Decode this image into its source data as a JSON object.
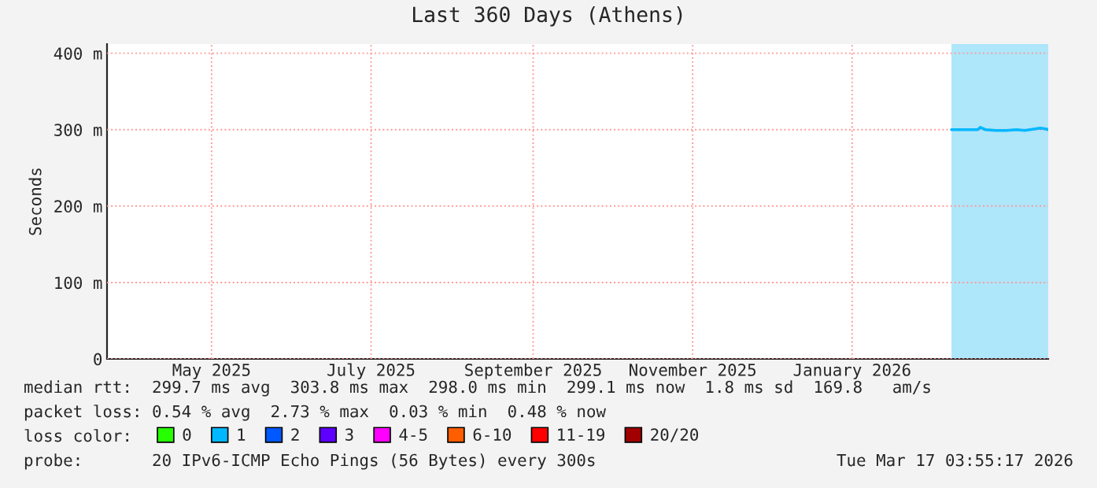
{
  "chart_data": {
    "type": "line",
    "title": "Last 360 Days (Athens)",
    "ylabel": "Seconds",
    "x": [
      "2026-02-08",
      "2026-02-12",
      "2026-02-16",
      "2026-02-18",
      "2026-02-19",
      "2026-02-21",
      "2026-02-25",
      "2026-03-01",
      "2026-03-05",
      "2026-03-08",
      "2026-03-10",
      "2026-03-12",
      "2026-03-14",
      "2026-03-16",
      "2026-03-17"
    ],
    "series": [
      {
        "name": "0",
        "color": "#26ff00",
        "values": [
          null,
          null,
          null,
          null,
          null,
          null,
          null,
          null,
          null,
          null,
          null,
          null,
          null,
          null,
          null
        ]
      },
      {
        "name": "1",
        "color": "#00b8ff",
        "values": [
          300,
          300,
          300,
          300,
          303,
          300,
          299,
          299,
          300,
          299,
          300,
          301,
          302,
          301,
          300
        ]
      },
      {
        "name": "2",
        "color": "#0059ff",
        "values": [
          null,
          null,
          null,
          null,
          null,
          null,
          null,
          null,
          null,
          null,
          null,
          null,
          null,
          null,
          null
        ]
      },
      {
        "name": "3",
        "color": "#5e00ff",
        "values": [
          null,
          null,
          null,
          null,
          null,
          null,
          null,
          null,
          null,
          null,
          null,
          null,
          null,
          null,
          null
        ]
      },
      {
        "name": "4-5",
        "color": "#ff00ff",
        "values": [
          null,
          null,
          null,
          null,
          null,
          null,
          null,
          null,
          null,
          null,
          null,
          null,
          null,
          null,
          null
        ]
      },
      {
        "name": "6-10",
        "color": "#ff5e00",
        "values": [
          null,
          null,
          null,
          null,
          null,
          null,
          null,
          null,
          null,
          null,
          null,
          null,
          null,
          null,
          null
        ]
      },
      {
        "name": "11-19",
        "color": "#ff0000",
        "values": [
          null,
          null,
          null,
          null,
          null,
          null,
          null,
          null,
          null,
          null,
          null,
          null,
          null,
          null,
          null
        ]
      },
      {
        "name": "20/20",
        "color": "#a10000",
        "values": [
          null,
          null,
          null,
          null,
          null,
          null,
          null,
          null,
          null,
          null,
          null,
          null,
          null,
          null,
          null
        ]
      }
    ],
    "legend_title": "loss color:",
    "legend": "bottom",
    "xlim": [
      "2025-03-22",
      "2026-03-17"
    ],
    "xticks": [
      {
        "value": "2025-05-01",
        "label": "May 2025"
      },
      {
        "value": "2025-07-01",
        "label": "July 2025"
      },
      {
        "value": "2025-09-01",
        "label": "September 2025"
      },
      {
        "value": "2025-11-01",
        "label": "November 2025"
      },
      {
        "value": "2026-01-01",
        "label": "January 2026"
      }
    ],
    "ylim": [
      0,
      412
    ],
    "yticks": [
      0,
      {
        "value": 100,
        "label": "100 m"
      },
      {
        "value": 200,
        "label": "200 m"
      },
      {
        "value": 300,
        "label": "300 m"
      },
      {
        "value": 400,
        "label": "400 m"
      }
    ],
    "bands": [
      {
        "axis": "x",
        "from": "2026-02-08",
        "to": "2026-03-17",
        "color": "#aee6fa"
      }
    ],
    "grid": true,
    "annotations": [
      "median rtt:  299.7 ms avg  303.8 ms max  298.0 ms min  299.1 ms now  1.8 ms sd  169.8   am/s",
      "packet loss: 0.54 % avg  2.73 % max  0.03 % min  0.48 % now",
      "probe:       20 IPv6-ICMP Echo Pings (56 Bytes) every 300s",
      "Tue Mar 17 03:55:17 2026"
    ]
  }
}
